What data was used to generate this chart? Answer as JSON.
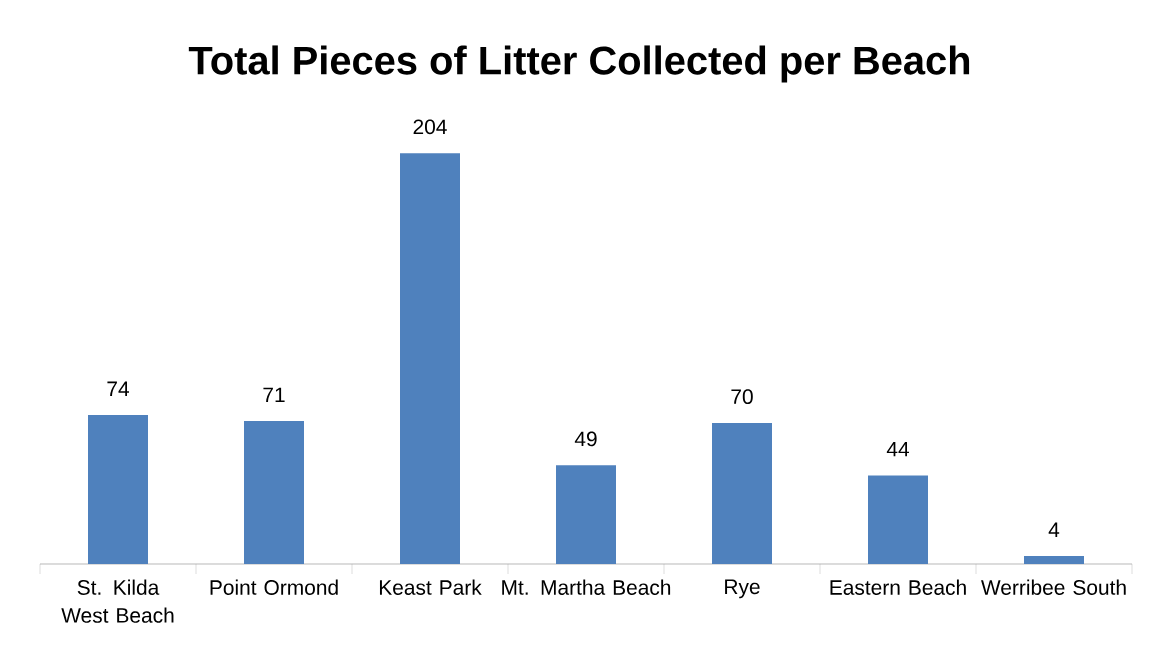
{
  "chart_data": {
    "type": "bar",
    "title": "Total Pieces of Litter Collected per Beach",
    "categories": [
      "St. Kilda West Beach",
      "Point Ormond",
      "Keast Park",
      "Mt. Martha Beach",
      "Rye",
      "Eastern Beach",
      "Werribee South"
    ],
    "values": [
      74,
      71,
      204,
      49,
      70,
      44,
      4
    ],
    "color": "#4f81bd",
    "data_labels": true
  }
}
